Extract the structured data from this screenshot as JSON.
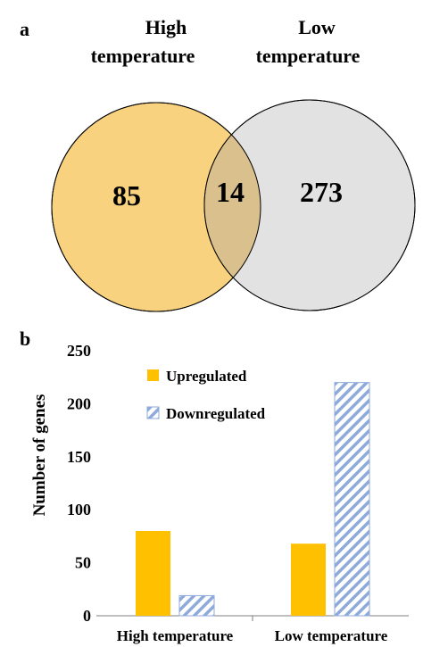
{
  "panels": {
    "a_label": "a",
    "b_label": "b"
  },
  "colors": {
    "high_circle": "#F8D27E",
    "low_circle": "#E2E2E2",
    "overlap": "#D9C08C",
    "upregulated": "#FFC000",
    "downregulated_stripe": "#8EAADB",
    "axis": "#7F7F7F"
  },
  "chart_data": [
    {
      "type": "venn",
      "sets": [
        {
          "name_lines": [
            "High",
            "temperature"
          ],
          "only": 85
        },
        {
          "name_lines": [
            "Low",
            "temperature"
          ],
          "only": 273
        }
      ],
      "intersection": 14
    },
    {
      "type": "bar",
      "categories": [
        "High temperature",
        "Low temperature"
      ],
      "series": [
        {
          "name": "Upregulated",
          "values": [
            80,
            68
          ],
          "pattern": "solid"
        },
        {
          "name": "Downregulated",
          "values": [
            19,
            220
          ],
          "pattern": "diagonal-stripes"
        }
      ],
      "ylabel": "Number of genes",
      "ylim": [
        0,
        250
      ],
      "yticks": [
        0,
        50,
        100,
        150,
        200,
        250
      ],
      "grid": false,
      "legend_position": "top-left"
    }
  ]
}
